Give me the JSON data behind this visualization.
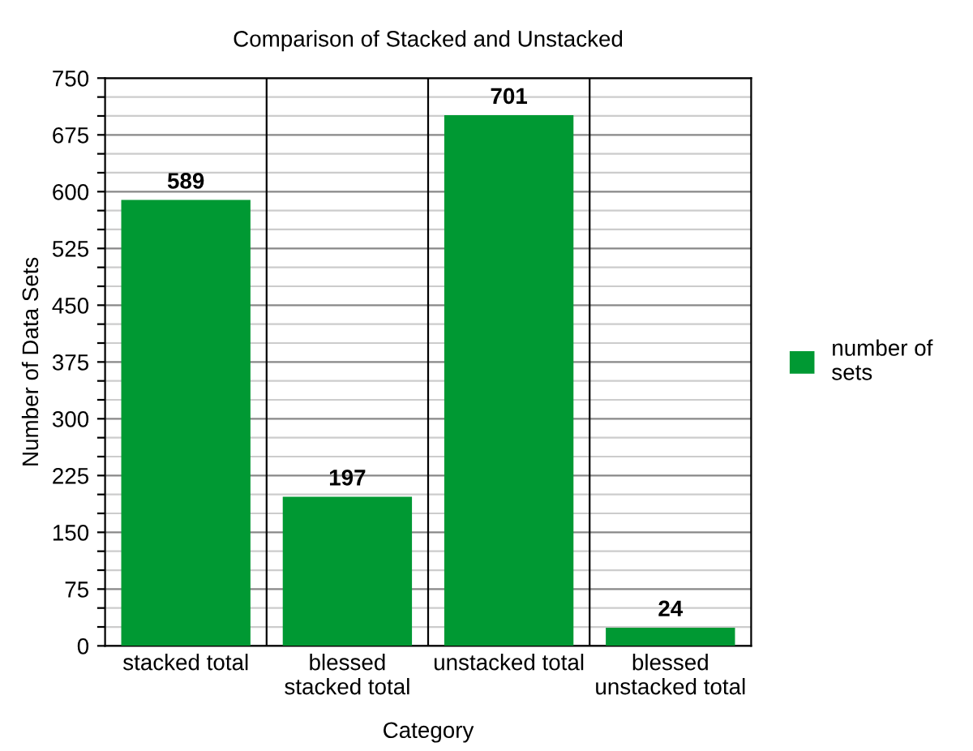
{
  "chart_data": {
    "type": "bar",
    "title": "Comparison of Stacked and Unstacked",
    "xlabel": "Category",
    "ylabel": "Number of Data Sets",
    "categories": [
      "stacked total",
      "blessed\nstacked total",
      "unstacked total",
      "blessed\nunstacked total"
    ],
    "series": [
      {
        "name": "number of sets",
        "color": "#009933",
        "values": [
          589,
          197,
          701,
          24
        ]
      }
    ],
    "ylim": [
      0,
      750
    ],
    "yticks": [
      0,
      {
        "value": 25,
        "label": null
      },
      {
        "value": 50,
        "label": null
      },
      75,
      {
        "value": 100,
        "label": null
      },
      {
        "value": 125,
        "label": null
      },
      150,
      {
        "value": 175,
        "label": null
      },
      {
        "value": 200,
        "label": null
      },
      225,
      {
        "value": 250,
        "label": null
      },
      {
        "value": 275,
        "label": null
      },
      300,
      {
        "value": 325,
        "label": null
      },
      {
        "value": 350,
        "label": null
      },
      375,
      {
        "value": 400,
        "label": null
      },
      {
        "value": 425,
        "label": null
      },
      450,
      {
        "value": 475,
        "label": null
      },
      {
        "value": 500,
        "label": null
      },
      525,
      {
        "value": 550,
        "label": null
      },
      {
        "value": 575,
        "label": null
      },
      600,
      {
        "value": 625,
        "label": null
      },
      {
        "value": 650,
        "label": null
      },
      675,
      {
        "value": 700,
        "label": null
      },
      {
        "value": 725,
        "label": null
      },
      750
    ],
    "grid": true,
    "legend": "right",
    "data_labels": true
  }
}
